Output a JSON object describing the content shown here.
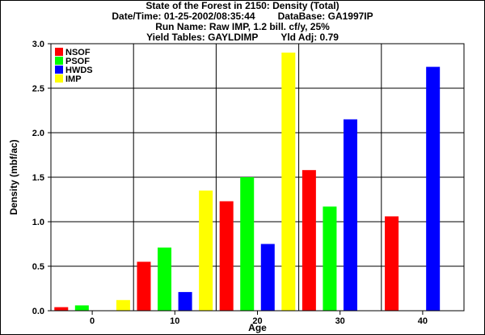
{
  "header": {
    "title": "State of the Forest in 2150: Density (Total)",
    "datetime": "Date/Time: 01-25-2002/08:35:44",
    "database": "DataBase: GA1997IP",
    "run_name": "Run Name: Raw IMP, 1.2 bill. cf/y, 25%",
    "yield_tables": "Yield Tables: GAYLDIMP",
    "yld_adj": "Yld Adj: 0.79"
  },
  "chart_data": {
    "type": "bar",
    "xlabel": "Age",
    "ylabel": "Density (mbf/ac)",
    "categories": [
      "0",
      "10",
      "20",
      "30",
      "40"
    ],
    "ylim": [
      0,
      3.0
    ],
    "yticks": [
      "0.0",
      "0.5",
      "1.0",
      "1.5",
      "2.0",
      "2.5",
      "3.0"
    ],
    "grid": true,
    "legend_position": "top-left",
    "series": [
      {
        "name": "NSOF",
        "color": "#ff0000",
        "values": [
          0.04,
          0.55,
          1.23,
          1.58,
          1.06
        ]
      },
      {
        "name": "PSOF",
        "color": "#00ff00",
        "values": [
          0.06,
          0.71,
          1.5,
          1.17,
          0
        ]
      },
      {
        "name": "HWDS",
        "color": "#0000ff",
        "values": [
          0,
          0.21,
          0.75,
          2.15,
          2.74
        ]
      },
      {
        "name": "IMP",
        "color": "#ffff00",
        "values": [
          0.12,
          1.35,
          2.9,
          0,
          0
        ]
      }
    ]
  }
}
